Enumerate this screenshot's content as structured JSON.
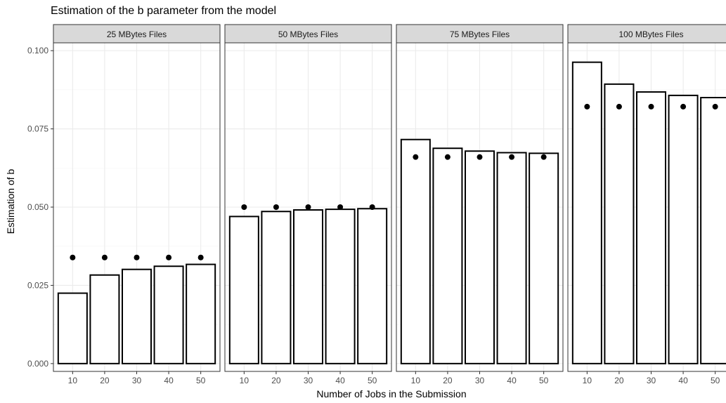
{
  "chart_data": {
    "type": "bar",
    "title": "Estimation of the b parameter from the model",
    "xlabel": "Number of Jobs in the Submission",
    "ylabel": "Estimation of b",
    "ylim": [
      -0.0025,
      0.1025
    ],
    "y_ticks": [
      0.0,
      0.025,
      0.05,
      0.075,
      0.1
    ],
    "y_tick_labels": [
      "0.000",
      "0.025",
      "0.050",
      "0.075",
      "0.100"
    ],
    "categories": [
      "10",
      "20",
      "30",
      "40",
      "50"
    ],
    "grid": true,
    "legend": "none",
    "colors": {
      "bar_fill": "#ffffff",
      "bar_stroke": "#000000",
      "point": "#000000",
      "strip": "#d9d9d9",
      "grid_major": "#ebebeb",
      "grid_minor": "#f5f5f5",
      "axis_text": "#4d4d4d"
    },
    "panels": [
      {
        "label": "25 MBytes Files",
        "bar_values": [
          0.0225,
          0.0283,
          0.0301,
          0.0311,
          0.0317
        ],
        "point_values": [
          0.0339,
          0.0339,
          0.0339,
          0.0339,
          0.0339
        ]
      },
      {
        "label": "50 MBytes Files",
        "bar_values": [
          0.047,
          0.0486,
          0.0491,
          0.0493,
          0.0495
        ],
        "point_values": [
          0.05,
          0.05,
          0.05,
          0.05,
          0.05
        ]
      },
      {
        "label": "75 MBytes Files",
        "bar_values": [
          0.0716,
          0.0688,
          0.0679,
          0.0674,
          0.0672
        ],
        "point_values": [
          0.066,
          0.066,
          0.066,
          0.066,
          0.066
        ]
      },
      {
        "label": "100 MBytes Files",
        "bar_values": [
          0.0963,
          0.0893,
          0.0868,
          0.0857,
          0.085
        ],
        "point_values": [
          0.0821,
          0.0821,
          0.0821,
          0.0821,
          0.0821
        ]
      }
    ]
  }
}
